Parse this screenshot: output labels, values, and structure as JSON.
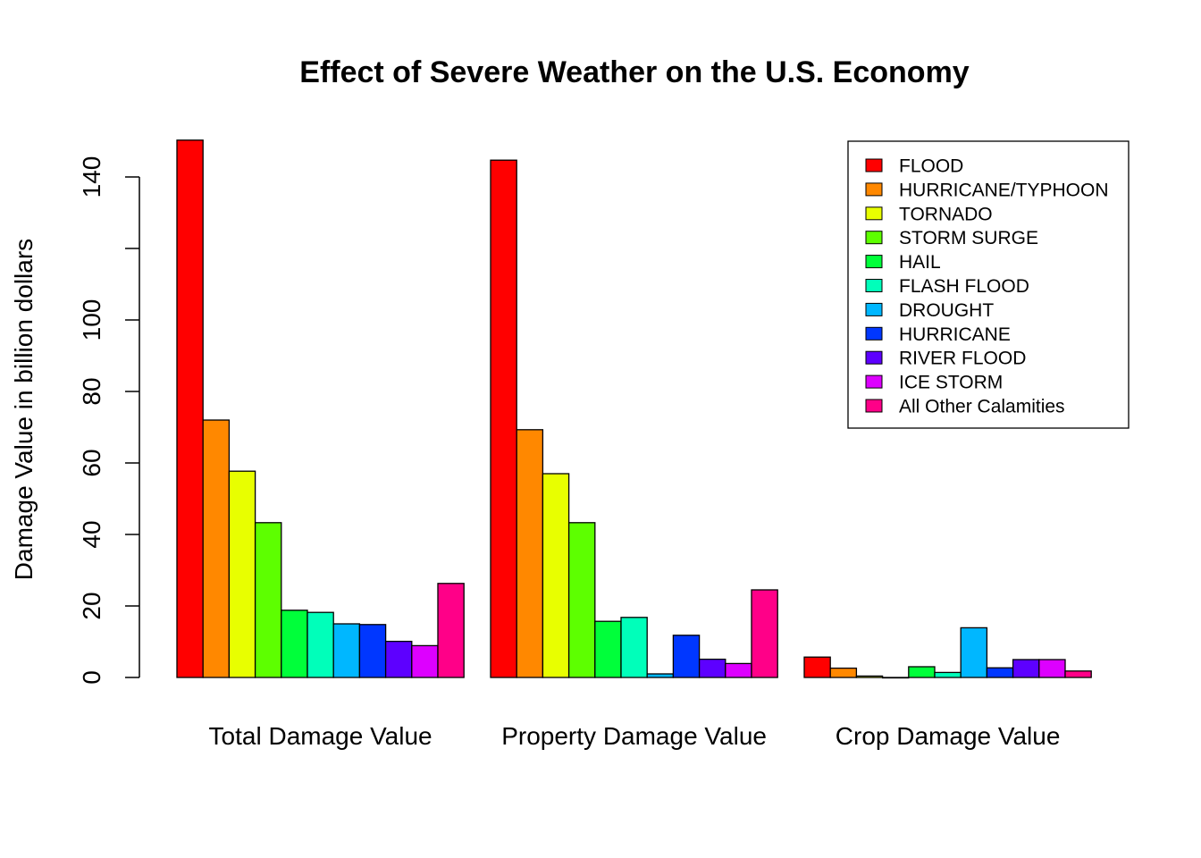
{
  "chart_data": {
    "type": "bar",
    "title": "Effect of Severe Weather on the U.S. Economy",
    "xlabel": "",
    "ylabel": "Damage Value in billion dollars",
    "ylim": [
      0,
      150
    ],
    "yticks": [
      0,
      20,
      40,
      60,
      80,
      100,
      120,
      140
    ],
    "ytick_labels": [
      "0",
      "20",
      "40",
      "60",
      "80",
      "100",
      "",
      "140"
    ],
    "grid": false,
    "legend_position": "top-right",
    "categories": [
      "Total Damage Value",
      "Property Damage Value",
      "Crop Damage Value"
    ],
    "series": [
      {
        "name": "FLOOD",
        "color": "#FF0000",
        "values": [
          150.3,
          144.7,
          5.7
        ]
      },
      {
        "name": "HURRICANE/TYPHOON",
        "color": "#FF8800",
        "values": [
          72.0,
          69.3,
          2.6
        ]
      },
      {
        "name": "TORNADO",
        "color": "#E8FF00",
        "values": [
          57.7,
          57.0,
          0.4
        ]
      },
      {
        "name": "STORM SURGE",
        "color": "#5DFF00",
        "values": [
          43.3,
          43.3,
          0.0
        ]
      },
      {
        "name": "HAIL",
        "color": "#00FF3A",
        "values": [
          18.8,
          15.7,
          3.0
        ]
      },
      {
        "name": "FLASH FLOOD",
        "color": "#00FFBA",
        "values": [
          18.2,
          16.8,
          1.4
        ]
      },
      {
        "name": "DROUGHT",
        "color": "#00B7FF",
        "values": [
          15.0,
          1.0,
          13.9
        ]
      },
      {
        "name": "HURRICANE",
        "color": "#0037FF",
        "values": [
          14.8,
          11.8,
          2.7
        ]
      },
      {
        "name": "RIVER FLOOD",
        "color": "#5D00FF",
        "values": [
          10.1,
          5.1,
          5.0
        ]
      },
      {
        "name": "ICE STORM",
        "color": "#DD00FF",
        "values": [
          8.9,
          3.9,
          5.0
        ]
      },
      {
        "name": "All Other Calamities",
        "color": "#FF0088",
        "values": [
          26.3,
          24.5,
          1.8
        ]
      }
    ]
  }
}
